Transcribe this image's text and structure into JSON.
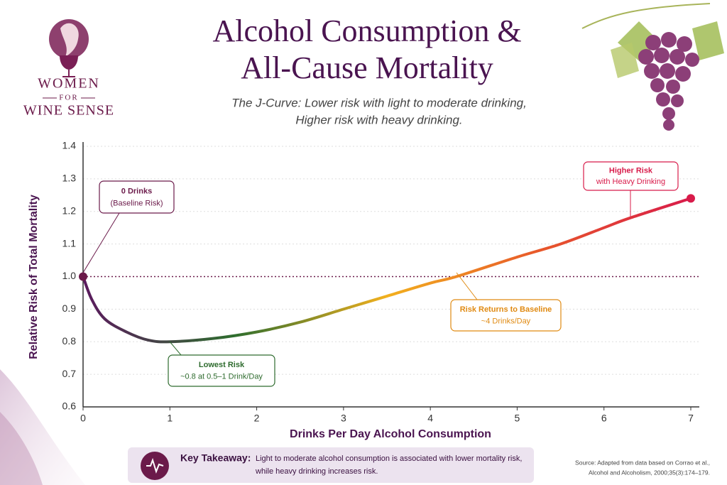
{
  "brand": {
    "lines": [
      "WOMEN",
      "FOR",
      "WINE SENSE"
    ]
  },
  "chart_data": {
    "type": "line",
    "title": [
      "Alcohol Consumption &",
      "All-Cause Mortality"
    ],
    "subtitle": [
      "The J-Curve: Lower risk with light to moderate drinking,",
      "Higher risk with heavy drinking."
    ],
    "x_label": "Drinks Per Day Alcohol Consumption",
    "y_label": "Relative Risk of Total Mortality",
    "x": [
      0,
      0.1,
      0.25,
      0.5,
      0.75,
      1,
      1.5,
      2,
      2.5,
      3,
      3.5,
      4,
      4.3,
      5,
      5.5,
      6,
      6.3,
      7
    ],
    "values": [
      1.0,
      0.93,
      0.87,
      0.83,
      0.805,
      0.8,
      0.81,
      0.83,
      0.86,
      0.9,
      0.94,
      0.98,
      1.0,
      1.06,
      1.1,
      1.15,
      1.18,
      1.24
    ],
    "gradient": [
      "#5b1a5e",
      "#2e6e2e",
      "#f2b01e",
      "#e8582a",
      "#d81b4a"
    ],
    "xlim": [
      0,
      7
    ],
    "xticks": [
      0,
      1,
      2,
      3,
      4,
      5,
      6,
      7
    ],
    "ylim": [
      0.6,
      1.4
    ],
    "yticks": [
      0.6,
      0.7,
      0.8,
      0.9,
      {
        "value": 1,
        "label": "1.0"
      },
      1.1,
      1.2,
      1.3,
      1.4
    ],
    "reference_line": 1,
    "grid": true,
    "annotations": [
      {
        "title": "0 Drinks",
        "text": "(Baseline Risk)",
        "color": "#6b1a4a"
      },
      {
        "title": "Lowest Risk",
        "text": "~0.8 at 0.5–1 Drink/Day",
        "color": "#2e6b2e"
      },
      {
        "title": "Risk Returns to Baseline",
        "text": "~4 Drinks/Day",
        "color": "#e08a12"
      },
      {
        "title": "Higher Risk",
        "text": "with Heavy Drinking",
        "color": "#d81b4a"
      }
    ]
  },
  "takeaway": {
    "label": "Key Takeaway:",
    "lines": [
      "Light to moderate alcohol consumption is associated with lower mortality risk,",
      "while heavy drinking increases risk."
    ]
  },
  "source": {
    "lines": [
      "Source: Adapted from data based on Corrao et al.,",
      "Alcohol and Alcoholism, 2000;35(3):174–179."
    ]
  }
}
